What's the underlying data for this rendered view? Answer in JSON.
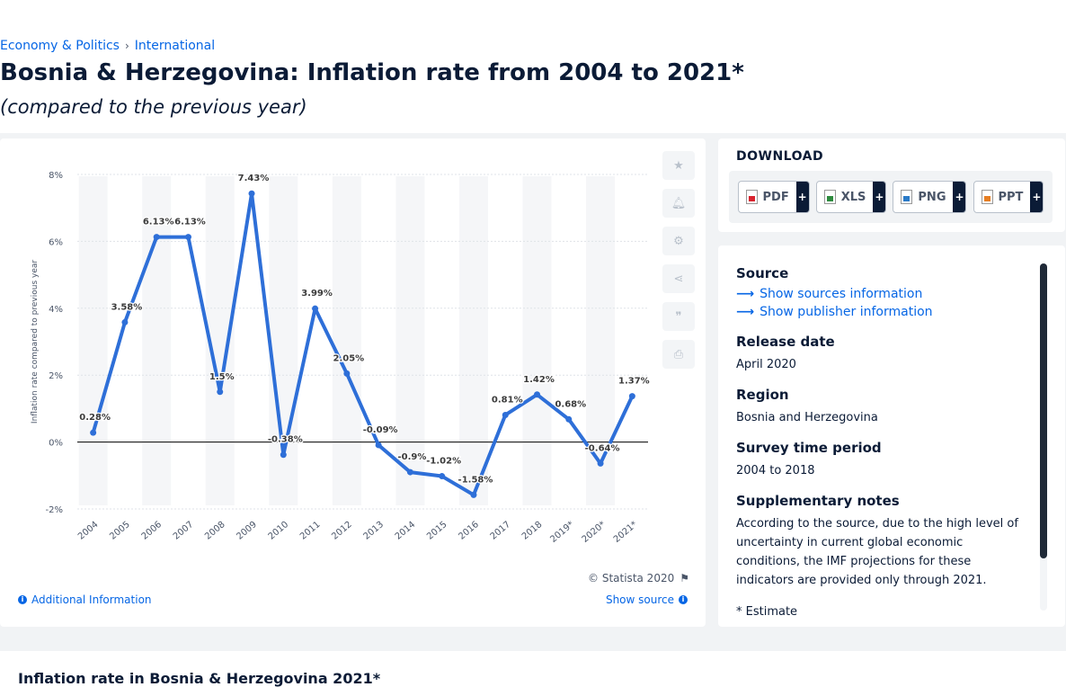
{
  "breadcrumb": {
    "item1": "Economy & Politics",
    "separator": "›",
    "item2": "International"
  },
  "title": "Bosnia & Herzegovina: Inflation rate from 2004 to 2021*",
  "subtitle": "(compared to the previous year)",
  "chart_data": {
    "type": "line",
    "ylabel": "Inflation rate compared to previous year",
    "categories": [
      "2004",
      "2005",
      "2006",
      "2007",
      "2008",
      "2009",
      "2010",
      "2011",
      "2012",
      "2013",
      "2014",
      "2015",
      "2016",
      "2017",
      "2018",
      "2019*",
      "2020*",
      "2021*"
    ],
    "series": [
      {
        "values": [
          0.28,
          3.58,
          6.13,
          6.13,
          1.5,
          7.43,
          -0.38,
          3.99,
          2.05,
          -0.09,
          -0.9,
          -1.02,
          -1.58,
          0.81,
          1.42,
          0.68,
          -0.64,
          1.37
        ],
        "labels": [
          "0.28%",
          "3.58%",
          "6.13%",
          "6.13%",
          "1.5%",
          "7.43%",
          "-0.38%",
          "3.99%",
          "2.05%",
          "-0.09%",
          "-0.9%",
          "-1.02%",
          "-1.58%",
          "0.81%",
          "1.42%",
          "0.68%",
          "-0.64%",
          "1.37%"
        ]
      }
    ],
    "yticks": [
      -2,
      0,
      2,
      4,
      6,
      8
    ],
    "ytick_labels": [
      "-2%",
      "0%",
      "2%",
      "4%",
      "6%",
      "8%"
    ],
    "ylim": [
      -2,
      8
    ],
    "grid": true,
    "line_color": "#2e6fd8"
  },
  "toolbar": {
    "icons": [
      "star-icon",
      "bell-icon",
      "gear-icon",
      "share-icon",
      "quote-icon",
      "print-icon"
    ]
  },
  "footer": {
    "copyright": "© Statista 2020",
    "additional_info": "Additional Information",
    "show_source": "Show source"
  },
  "download": {
    "title": "DOWNLOAD",
    "buttons": [
      {
        "label": "PDF",
        "plus": "+"
      },
      {
        "label": "XLS",
        "plus": "+"
      },
      {
        "label": "PNG",
        "plus": "+"
      },
      {
        "label": "PPT",
        "plus": "+"
      }
    ]
  },
  "source": {
    "source_label": "Source",
    "show_sources": "Show sources information",
    "show_publisher": "Show publisher information",
    "release_label": "Release date",
    "release_value": "April 2020",
    "region_label": "Region",
    "region_value": "Bosnia and Herzegovina",
    "period_label": "Survey time period",
    "period_value": "2004 to 2018",
    "notes_label": "Supplementary notes",
    "notes_value": "According to the source, due to the high level of uncertainty in current global economic conditions, the IMF projections for these indicators are provided only through 2021.",
    "estimate_note": "* Estimate"
  },
  "bottom": {
    "title": "Inflation rate in Bosnia & Herzegovina 2021*"
  }
}
